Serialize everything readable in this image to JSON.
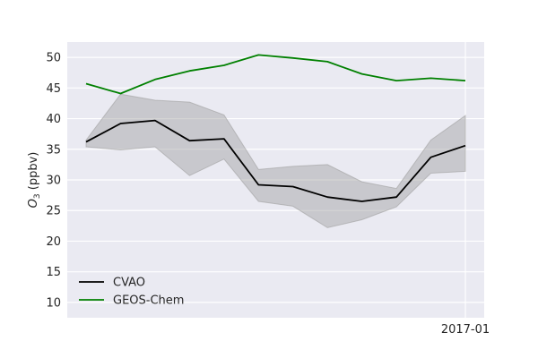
{
  "chart_data": {
    "type": "line",
    "title": "",
    "xlabel": "",
    "ylabel": "O3 (ppbv)",
    "ylabel_main": "O",
    "ylabel_sub": "3",
    "ylabel_units": " (ppbv)",
    "x_tick_labels": [
      "2017-01"
    ],
    "yticks": [
      10,
      15,
      20,
      25,
      30,
      35,
      40,
      45,
      50
    ],
    "ylim": [
      7.5,
      52.5
    ],
    "grid": true,
    "legend_position": "lower-left",
    "background_color": "#eaeaf2",
    "series": [
      {
        "name": "CVAO",
        "color": "#000000",
        "values": [
          36.2,
          39.2,
          39.7,
          36.4,
          36.7,
          29.2,
          28.9,
          27.2,
          26.5,
          27.2,
          33.7,
          35.6
        ]
      },
      {
        "name": "GEOS-Chem",
        "color": "#008000",
        "values": [
          45.7,
          44.1,
          46.4,
          47.8,
          48.7,
          50.4,
          49.9,
          49.3,
          47.3,
          46.2,
          46.6,
          46.2
        ]
      }
    ],
    "band": {
      "series": "CVAO",
      "color": "#a0a0a0",
      "lower": [
        35.4,
        34.9,
        35.4,
        30.7,
        33.4,
        26.5,
        25.7,
        22.2,
        23.5,
        25.6,
        31.1,
        31.4
      ],
      "upper": [
        36.5,
        44.0,
        43.0,
        42.7,
        40.6,
        31.7,
        32.2,
        32.5,
        29.7,
        28.6,
        36.5,
        40.5
      ]
    }
  }
}
